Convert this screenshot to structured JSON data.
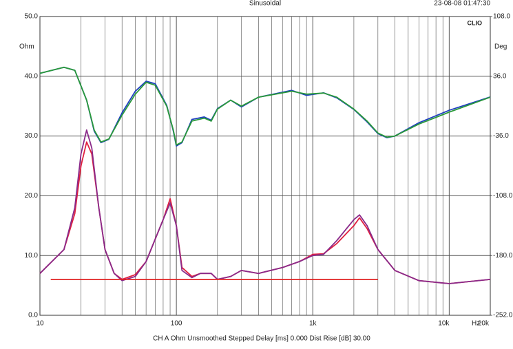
{
  "chart_data": {
    "type": "line",
    "title": "Sinusoidal",
    "date": "23-08-08 01:47:30",
    "logo": "CLIO",
    "ylabel": "Ohm",
    "y2label": "Deg",
    "xlabel": "Hz",
    "footer": "CH A   Ohm   Unsmoothed   Stepped    Delay [ms] 0.000   Dist Rise [dB] 30.00",
    "xscale": "log",
    "grid": true,
    "xlim": [
      10,
      20000
    ],
    "xticks": [
      10,
      100,
      {
        "value": 1000,
        "label": "1k"
      },
      {
        "value": 10000,
        "label": "10k"
      },
      {
        "value": 20000,
        "label": "20k"
      }
    ],
    "ylim": [
      0,
      50
    ],
    "yticks": [
      {
        "value": 0,
        "label": "0.0"
      },
      {
        "value": 10,
        "label": "10.0"
      },
      {
        "value": 20,
        "label": "20.0"
      },
      {
        "value": 30,
        "label": "30.0"
      },
      {
        "value": 40,
        "label": "40.0"
      },
      {
        "value": 50,
        "label": "50.0"
      }
    ],
    "y2lim": [
      -252,
      108
    ],
    "y2ticks": [
      {
        "value": -252,
        "label": "-252.0"
      },
      {
        "value": -180,
        "label": "-180.0"
      },
      {
        "value": -108,
        "label": "-108.0"
      },
      {
        "value": -36,
        "label": "-36.0"
      },
      {
        "value": 36,
        "label": "36.0"
      },
      {
        "value": 108,
        "label": "108.0"
      }
    ],
    "series": [
      {
        "color": "#2040c0",
        "axis": "y2",
        "x": [
          10,
          15,
          18,
          22,
          25,
          28,
          32,
          40,
          50,
          60,
          70,
          85,
          95,
          100,
          110,
          130,
          160,
          180,
          200,
          250,
          300,
          400,
          700,
          900,
          1200,
          1500,
          2000,
          2500,
          3000,
          3500,
          4000,
          6000,
          10000,
          20000
        ],
        "values": [
          39.6,
          46.8,
          43.2,
          7.2,
          -30,
          -44,
          -40,
          -8,
          18,
          30,
          27,
          1,
          -30,
          -48,
          -44,
          -16,
          -13,
          -17,
          -3,
          7.2,
          -1,
          10.8,
          19,
          13,
          16,
          10,
          -4,
          -19,
          -33,
          -38,
          -36,
          -20,
          -5,
          11
        ]
      },
      {
        "color": "#2a9a3a",
        "axis": "y2",
        "x": [
          10,
          15,
          18,
          22,
          25,
          28,
          32,
          40,
          50,
          60,
          70,
          85,
          95,
          100,
          110,
          130,
          160,
          180,
          200,
          250,
          300,
          400,
          700,
          900,
          1200,
          1500,
          2000,
          2500,
          3000,
          3500,
          4000,
          6000,
          10000,
          20000
        ],
        "values": [
          39.6,
          46.8,
          43.2,
          7.2,
          -28.8,
          -43.2,
          -39.6,
          -10.8,
          14.4,
          28.8,
          25.2,
          0,
          -28.8,
          -46.8,
          -43.2,
          -18,
          -14.4,
          -18,
          -3.6,
          7.2,
          0,
          10.8,
          18,
          14.4,
          15.8,
          10.8,
          -3.6,
          -18,
          -32.4,
          -37.4,
          -36,
          -21.6,
          -7.2,
          10.8
        ]
      },
      {
        "color": "#e02040",
        "x": [
          10,
          15,
          18,
          20,
          22,
          24,
          27,
          30,
          35,
          40,
          50,
          60,
          80,
          90,
          100,
          110,
          130,
          150,
          180,
          200,
          250,
          300,
          400,
          600,
          800,
          1000,
          1200,
          1500,
          2000,
          2200,
          2500,
          3000,
          4000,
          6000,
          10000,
          20000
        ],
        "values": [
          7,
          11,
          17,
          25,
          29,
          27,
          18,
          11,
          7,
          6,
          6.8,
          9,
          16,
          19.5,
          15,
          8,
          6.5,
          7,
          7,
          6,
          6.5,
          7.5,
          7,
          8,
          9,
          10.2,
          10.3,
          12,
          15,
          16.3,
          14.5,
          11,
          7.5,
          5.8,
          5.3,
          6
        ]
      },
      {
        "color": "#8a2a8a",
        "x": [
          10,
          15,
          18,
          20,
          22,
          24,
          27,
          30,
          35,
          40,
          50,
          60,
          80,
          90,
          100,
          110,
          130,
          150,
          180,
          200,
          250,
          300,
          400,
          600,
          800,
          1000,
          1200,
          1500,
          2000,
          2200,
          2500,
          3000,
          4000,
          6000,
          10000,
          20000
        ],
        "values": [
          7,
          11,
          18,
          27,
          31,
          28,
          18,
          11,
          7,
          5.8,
          6.5,
          9,
          16,
          18.8,
          15,
          7.5,
          6.3,
          7,
          7,
          6,
          6.5,
          7.5,
          7,
          8,
          9,
          10,
          10.2,
          12.5,
          16,
          16.8,
          15,
          11,
          7.5,
          5.8,
          5.3,
          6
        ]
      },
      {
        "color": "#e02020",
        "x": [
          12,
          3000
        ],
        "values": [
          6,
          6
        ]
      }
    ]
  }
}
